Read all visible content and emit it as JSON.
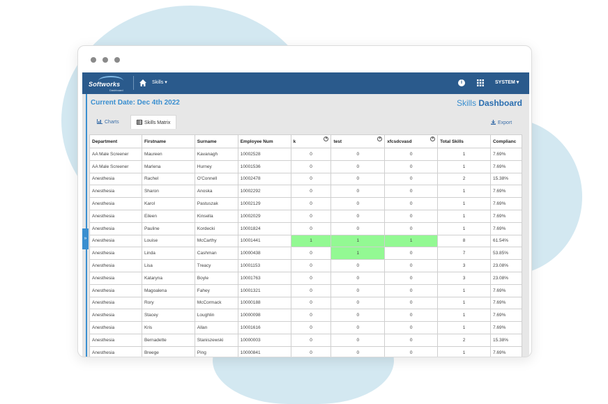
{
  "app": {
    "logo_text": "Softworks",
    "logo_sub": "Dashboard",
    "nav_skills": "Skills ▾",
    "system_label": "SYSTEM ▾"
  },
  "header": {
    "current_date": "Current Date: Dec 4th 2022",
    "title_light": "Skills",
    "title_bold": "Dashboard"
  },
  "tabs": [
    {
      "label": "Charts",
      "icon": "bar-chart-icon"
    },
    {
      "label": "Skills Matrix",
      "icon": "table-icon"
    }
  ],
  "export_label": "Export",
  "colors": {
    "topbar": "#2a5a8c",
    "accent": "#3a8fd0",
    "highlight": "#93f993"
  },
  "table": {
    "columns": [
      "Department",
      "Firstname",
      "Surname",
      "Employee Num",
      "k",
      "test",
      "xfcsdcvasd",
      "Total Skills",
      "Complianc"
    ],
    "rows": [
      [
        "AA Male Screener",
        "Maureen",
        "Kavanagh",
        "10002528",
        "0",
        "0",
        "0",
        "1",
        "7.69%"
      ],
      [
        "AA Male Screener",
        "Marlena",
        "Hurney",
        "10001536",
        "0",
        "0",
        "0",
        "1",
        "7.69%"
      ],
      [
        "Anesthesia",
        "Rachel",
        "O'Connell",
        "10002478",
        "0",
        "0",
        "0",
        "2",
        "15.38%"
      ],
      [
        "Anesthesia",
        "Sharon",
        "Anoska",
        "10002292",
        "0",
        "0",
        "0",
        "1",
        "7.69%"
      ],
      [
        "Anesthesia",
        "Karol",
        "Pastuszak",
        "10002129",
        "0",
        "0",
        "0",
        "1",
        "7.69%"
      ],
      [
        "Anesthesia",
        "Eileen",
        "Kinsella",
        "10002029",
        "0",
        "0",
        "0",
        "1",
        "7.69%"
      ],
      [
        "Anesthesia",
        "Pauline",
        "Kordecki",
        "10001824",
        "0",
        "0",
        "0",
        "1",
        "7.69%"
      ],
      [
        "Anesthesia",
        "Louise",
        "McCarthy",
        "10001441",
        "1",
        "1",
        "1",
        "8",
        "61.54%"
      ],
      [
        "Anesthesia",
        "Linda",
        "Cashman",
        "10000438",
        "0",
        "1",
        "0",
        "7",
        "53.85%"
      ],
      [
        "Anesthesia",
        "Lisa",
        "Treacy",
        "10001153",
        "0",
        "0",
        "0",
        "3",
        "23.08%"
      ],
      [
        "Anesthesia",
        "Kataryna",
        "Boyle",
        "10001763",
        "0",
        "0",
        "0",
        "3",
        "23.08%"
      ],
      [
        "Anesthesia",
        "Magoalena",
        "Fahey",
        "10001321",
        "0",
        "0",
        "0",
        "1",
        "7.69%"
      ],
      [
        "Anesthesia",
        "Rory",
        "McCormack",
        "10000188",
        "0",
        "0",
        "0",
        "1",
        "7.69%"
      ],
      [
        "Anesthesia",
        "Stacey",
        "Loughlin",
        "10000098",
        "0",
        "0",
        "0",
        "1",
        "7.69%"
      ],
      [
        "Anesthesia",
        "Kris",
        "Allan",
        "10001616",
        "0",
        "0",
        "0",
        "1",
        "7.69%"
      ],
      [
        "Anesthesia",
        "Bernadette",
        "Staniszewski",
        "10000003",
        "0",
        "0",
        "0",
        "2",
        "15.38%"
      ],
      [
        "Anesthesia",
        "Breege",
        "Ping",
        "10000841",
        "0",
        "0",
        "0",
        "1",
        "7.69%"
      ]
    ],
    "highlighted": [
      [
        7,
        4
      ],
      [
        7,
        5
      ],
      [
        7,
        6
      ],
      [
        8,
        5
      ]
    ]
  }
}
